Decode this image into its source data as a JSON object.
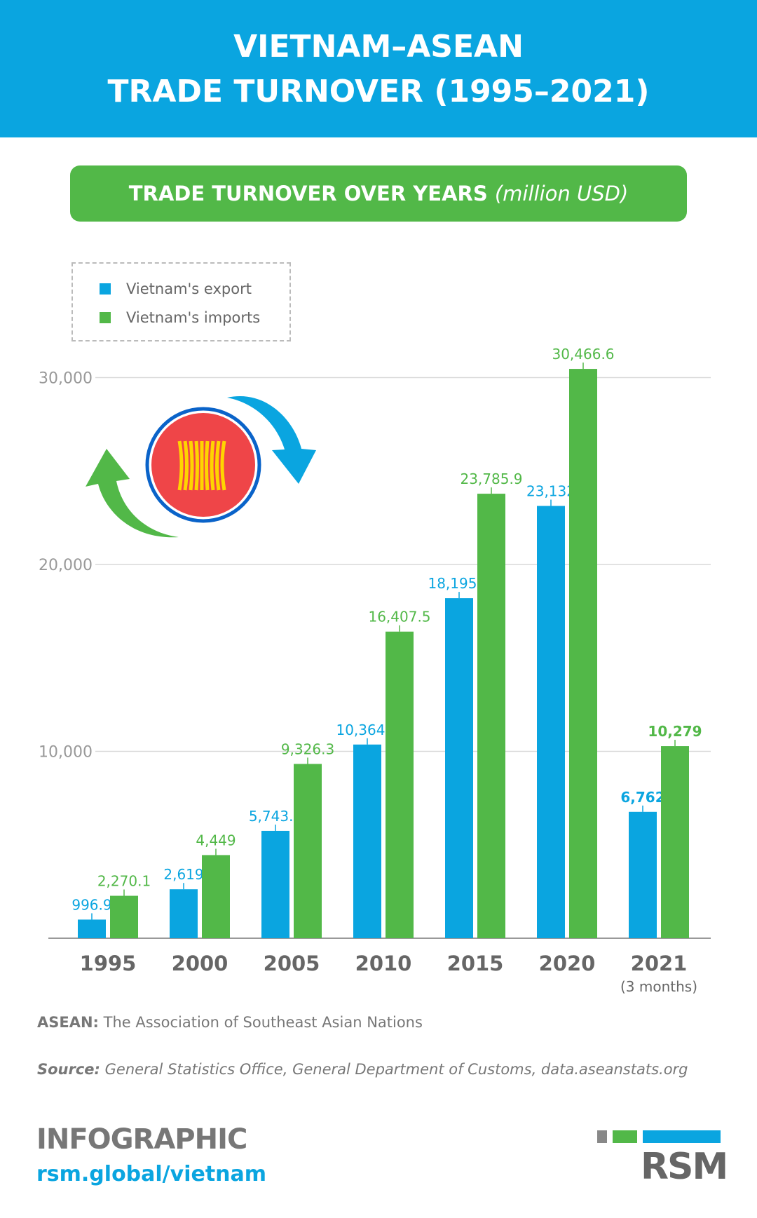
{
  "header": {
    "title_line1": "VIETNAM–ASEAN",
    "title_line2": "TRADE TURNOVER (1995–2021)"
  },
  "subtitle": {
    "bold": "TRADE TURNOVER OVER YEARS",
    "italic": "(million USD)"
  },
  "colors": {
    "export": "#0aa5e0",
    "imports": "#52b848",
    "grid": "#d9d9d9",
    "axis_text": "#999999",
    "year_text": "#666666"
  },
  "chart_data": {
    "type": "bar",
    "title": "TRADE TURNOVER OVER YEARS (million USD)",
    "categories": [
      "1995",
      "2000",
      "2005",
      "2010",
      "2015",
      "2020",
      "2021"
    ],
    "category_notes": [
      "",
      "",
      "",
      "",
      "",
      "",
      "(3 months)"
    ],
    "series": [
      {
        "name": "Vietnam's export",
        "values": [
          996.9,
          2619,
          5743.5,
          10364.7,
          18195.1,
          23132,
          6762
        ],
        "labels": [
          "996.9",
          "2,619",
          "5,743.5",
          "10,364.7",
          "18,195.1",
          "23,132",
          "6,762"
        ]
      },
      {
        "name": "Vietnam's imports",
        "values": [
          2270.1,
          4449,
          9326.3,
          16407.5,
          23785.9,
          30466.6,
          10279
        ],
        "labels": [
          "2,270.1",
          "4,449",
          "9,326.3",
          "16,407.5",
          "23,785.9",
          "30,466.6",
          "10,279"
        ]
      }
    ],
    "yticks": [
      10000,
      20000,
      30000
    ],
    "ytick_labels": [
      "10,000",
      "20,000",
      "30,000"
    ],
    "ylim": [
      0,
      30000
    ],
    "xlabel": "",
    "ylabel": "",
    "grid": true,
    "legend_position": "top-left"
  },
  "notes": {
    "asean_bold": "ASEAN:",
    "asean_text": " The Association of Southeast Asian Nations",
    "source_bold": "Source:",
    "source_text": " General Statistics Office, General Department of Customs, data.aseanstats.org"
  },
  "footer": {
    "infographic": "INFOGRAPHIC",
    "url": "rsm.global/vietnam",
    "logo": "RSM"
  }
}
